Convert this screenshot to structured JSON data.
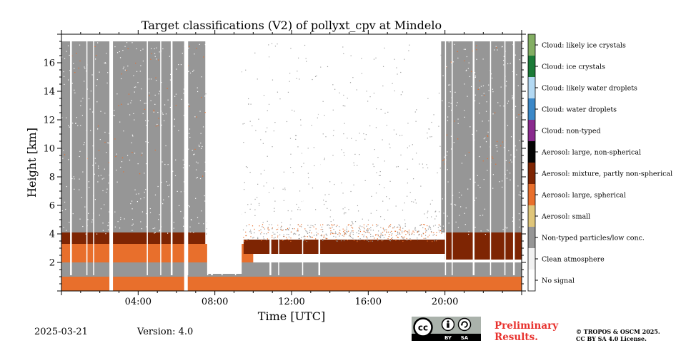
{
  "chart_data": {
    "type": "heatmap",
    "title": "Target classifications (V2) of pollyxt_cpv at Mindelo",
    "xlabel": "Time [UTC]",
    "ylabel": "Height [km]",
    "xlim": [
      0,
      24
    ],
    "ylim": [
      0,
      18
    ],
    "x_ticks": [
      {
        "value": 4,
        "label": "04:00"
      },
      {
        "value": 8,
        "label": "08:00"
      },
      {
        "value": 12,
        "label": "12:00"
      },
      {
        "value": 16,
        "label": "16:00"
      },
      {
        "value": 20,
        "label": "20:00"
      }
    ],
    "y_ticks": [
      {
        "value": 2,
        "label": "2"
      },
      {
        "value": 4,
        "label": "4"
      },
      {
        "value": 6,
        "label": "6"
      },
      {
        "value": 8,
        "label": "8"
      },
      {
        "value": 10,
        "label": "10"
      },
      {
        "value": 12,
        "label": "12"
      },
      {
        "value": 14,
        "label": "14"
      },
      {
        "value": 16,
        "label": "16"
      }
    ],
    "classes": [
      {
        "code": 0,
        "label": "No signal",
        "color": "#ffffff"
      },
      {
        "code": 1,
        "label": "Clean atmosphere",
        "color": "#f2f2f2"
      },
      {
        "code": 2,
        "label": "Non-typed particles/low conc.",
        "color": "#969696"
      },
      {
        "code": 3,
        "label": "Aerosol: small",
        "color": "#e0c67a"
      },
      {
        "code": 4,
        "label": "Aerosol: large, spherical",
        "color": "#e86f2c"
      },
      {
        "code": 5,
        "label": "Aerosol: mixture, partly non-spherical",
        "color": "#7e2503"
      },
      {
        "code": 6,
        "label": "Aerosol: large, non-spherical",
        "color": "#050505"
      },
      {
        "code": 7,
        "label": "Cloud: non-typed",
        "color": "#8a2a8e"
      },
      {
        "code": 8,
        "label": "Cloud: water droplets",
        "color": "#3b88c8"
      },
      {
        "code": 9,
        "label": "Cloud: likely water droplets",
        "color": "#b3d9f3"
      },
      {
        "code": 10,
        "label": "Cloud: ice crystals",
        "color": "#1b7a37"
      },
      {
        "code": 11,
        "label": "Cloud: likely ice crystals",
        "color": "#83ae63"
      }
    ],
    "layers": [
      {
        "class": "Aerosol: large, spherical",
        "base_km": 0.0,
        "top_km": 1.0,
        "time_range": [
          0,
          24
        ]
      },
      {
        "class": "Non-typed particles/low conc.",
        "base_km": 1.0,
        "top_km": 2.0,
        "time_range": [
          0,
          24
        ]
      },
      {
        "class": "Aerosol: large, spherical",
        "base_km": 2.0,
        "top_km": 3.3,
        "time_range": [
          0,
          10
        ]
      },
      {
        "class": "Aerosol: mixture, partly non-spherical",
        "base_km": 3.3,
        "top_km": 4.1,
        "time_range": [
          0,
          7.5
        ]
      },
      {
        "class": "Aerosol: mixture, partly non-spherical",
        "base_km": 2.6,
        "top_km": 3.6,
        "time_range": [
          9.5,
          20
        ]
      },
      {
        "class": "Aerosol: mixture, partly non-spherical",
        "base_km": 2.2,
        "top_km": 4.1,
        "time_range": [
          20,
          24
        ]
      },
      {
        "class": "Non-typed particles/low conc.",
        "base_km": 4.1,
        "top_km": 17.5,
        "time_range": [
          0,
          7.5
        ]
      },
      {
        "class": "Non-typed particles/low conc.",
        "base_km": 4.1,
        "top_km": 17.5,
        "time_range": [
          19.8,
          24
        ]
      }
    ]
  },
  "legend": [
    "Cloud: likely ice crystals",
    "Cloud: ice crystals",
    "Cloud: likely water droplets",
    "Cloud: water droplets",
    "Cloud: non-typed",
    "Aerosol: large, non-spherical",
    "Aerosol: mixture, partly non-spherical",
    "Aerosol: large, spherical",
    "Aerosol: small",
    "Non-typed particles/low conc.",
    "Clean atmosphere",
    "No signal"
  ],
  "footer": {
    "date": "2025-03-21",
    "version": "Version: 4.0",
    "preliminary_line1": "Preliminary",
    "preliminary_line2": "Results.",
    "copyright_line1": "© TROPOS & OSCM 2025.",
    "copyright_line2": "CC BY SA 4.0 License.",
    "cc_badge": {
      "cc": "cc",
      "by": "BY",
      "sa": "SA"
    }
  }
}
